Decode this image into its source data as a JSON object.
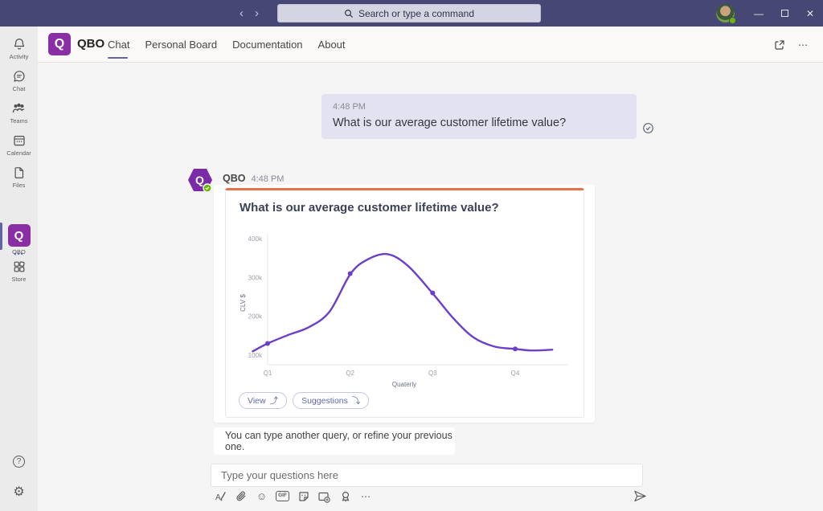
{
  "titlebar": {
    "search_placeholder": "Search or type a command"
  },
  "icons": {
    "back": "‹",
    "forward": "›",
    "minimize": "—",
    "close": "✕",
    "more": "⋯",
    "overflow_dots": "•••",
    "emoji": "☺",
    "gif": "GIF",
    "help": "?",
    "settings": "⚙",
    "view_arrow": "⤴",
    "suggestions_arrow": "⤵"
  },
  "sidebar": {
    "items": [
      {
        "label": "Activity",
        "icon": "bell-icon"
      },
      {
        "label": "Chat",
        "icon": "chat-bubble-icon"
      },
      {
        "label": "Teams",
        "icon": "teams-people-icon"
      },
      {
        "label": "Calendar",
        "icon": "calendar-icon"
      },
      {
        "label": "Files",
        "icon": "file-icon"
      },
      {
        "label": "QBO",
        "icon": "qbo-logo",
        "active": true
      },
      {
        "label": "Store",
        "icon": "store-icon"
      }
    ]
  },
  "appheader": {
    "app_name": "QBO",
    "tabs": [
      {
        "label": "Chat",
        "active": true
      },
      {
        "label": "Personal Board",
        "active": false
      },
      {
        "label": "Documentation",
        "active": false
      },
      {
        "label": "About",
        "active": false
      }
    ]
  },
  "conversation": {
    "user_message": {
      "time": "4:48 PM",
      "text": "What is our average customer lifetime value?"
    },
    "bot": {
      "name": "QBO",
      "time": "4:48 PM",
      "card_title": "What is our average customer lifetime value?",
      "buttons": [
        {
          "label": "View"
        },
        {
          "label": "Suggestions"
        }
      ]
    },
    "followup_text": "You can type another query, or refine your previous one."
  },
  "compose": {
    "placeholder": "Type your questions here"
  },
  "colors": {
    "topbar": "#464775",
    "accent": "#6264A7",
    "qbo_purple": "#8A2EA5",
    "card_top_border": "#E8714D",
    "chart_line": "#6B3FC9",
    "user_bubble": "#E2E2F0",
    "status_green": "#6BB700"
  },
  "chart_data": {
    "type": "line",
    "title": "What is our average customer lifetime value?",
    "categories": [
      "Q1",
      "Q2",
      "Q3",
      "Q4"
    ],
    "values": [
      130000,
      310000,
      260000,
      116000
    ],
    "values_k": [
      130,
      310,
      260,
      116
    ],
    "curve_points_k": [
      [
        0.82,
        110
      ],
      [
        1,
        130
      ],
      [
        1.25,
        152
      ],
      [
        1.5,
        172
      ],
      [
        1.75,
        212
      ],
      [
        2,
        308
      ],
      [
        2.2,
        345
      ],
      [
        2.45,
        360
      ],
      [
        2.7,
        330
      ],
      [
        3,
        259
      ],
      [
        3.25,
        195
      ],
      [
        3.5,
        145
      ],
      [
        3.75,
        122
      ],
      [
        4,
        116
      ],
      [
        4.2,
        112
      ],
      [
        4.45,
        114
      ]
    ],
    "xlabel": "Quaterly",
    "ylabel": "CLV $",
    "ytick_values_k": [
      100,
      200,
      300,
      400
    ],
    "ytick_labels": [
      "100k",
      "200k",
      "300k",
      "400k"
    ],
    "ylim_k": [
      75,
      420
    ],
    "line_color": "#6B3FC9",
    "grid": false,
    "legend": false,
    "style": "smooth spline with round point markers at each quarter; peak ~360k between Q2 and Q3"
  }
}
